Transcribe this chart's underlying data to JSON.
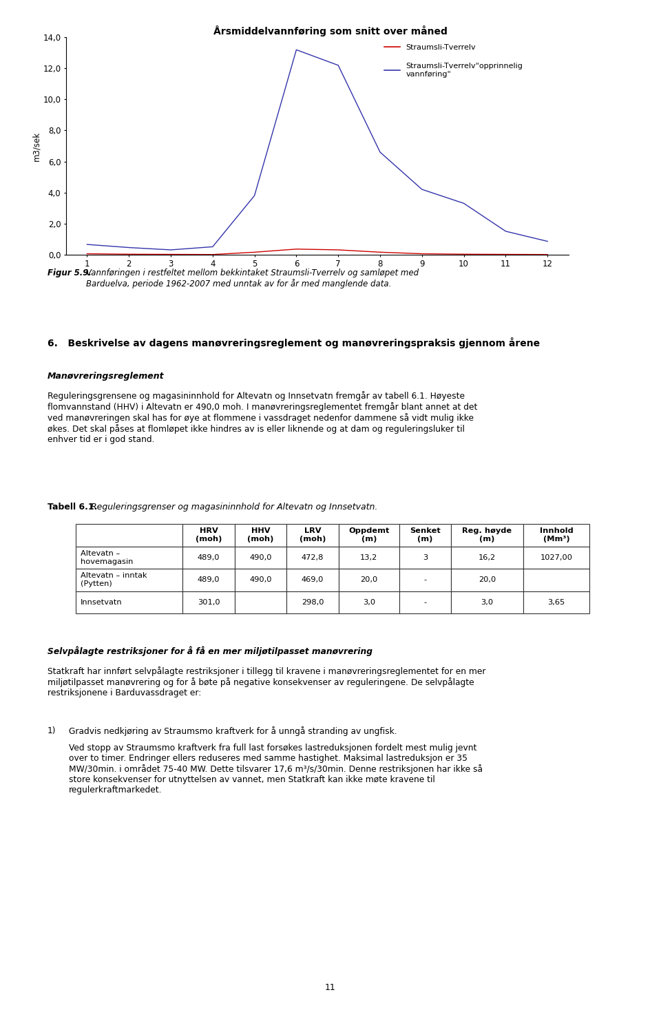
{
  "title": "Årsmiddelvannføring som snitt over måned",
  "ylabel": "m3/sek",
  "ylim": [
    0.0,
    14.0
  ],
  "yticks": [
    0.0,
    2.0,
    4.0,
    6.0,
    8.0,
    10.0,
    12.0,
    14.0
  ],
  "xticks": [
    1,
    2,
    3,
    4,
    5,
    6,
    7,
    8,
    9,
    10,
    11,
    12
  ],
  "line1_label": "Straumsli-Tverrelv",
  "line1_color": "#cc0000",
  "line1_x": [
    1,
    2,
    3,
    4,
    5,
    6,
    7,
    8,
    9,
    10,
    11,
    12
  ],
  "line1_y": [
    0.05,
    0.02,
    0.01,
    0.0,
    0.15,
    0.35,
    0.3,
    0.15,
    0.05,
    0.02,
    0.01,
    0.0
  ],
  "line2_label": "Straumsli-Tverrelv\"opprinnelig\nvannføring\"",
  "line2_color": "#3333aa",
  "line2_x": [
    1,
    2,
    3,
    4,
    5,
    6,
    7,
    8,
    9,
    10,
    11,
    12
  ],
  "line2_y": [
    0.65,
    0.45,
    0.3,
    0.5,
    3.8,
    13.2,
    12.2,
    6.6,
    4.2,
    3.3,
    1.5,
    0.85
  ],
  "figcaption_bold": "Figur 5.9.",
  "figcaption_text": "Vannføringen i restfeltet mellom bekkintaket Straumsli-Tverrelv og samløpet med\nBarduelva, periode 1962-2007 med unntak av for år med manglende data.",
  "section_number": "6.",
  "section_title": "Beskrivelse av dagens manøvreringsreglement og manøvreringspraksis gjennom årene",
  "subsection1": "Manøvreringsreglement",
  "paragraph1": "Reguleringsgrensene og magasininnhold for Altevatn og Innsetvatn fremgår av tabell 6.1. Høyeste\nflomvannstand (HHV) i Altevatn er 490,0 moh. I manøvreringsreglementet fremgår blant annet at det\nved manøvreringen skal has for øye at flommene i vassdraget nedenfor dammene så vidt mulig ikke\nøkes. Det skal påses at flomløpet ikke hindres av is eller liknende og at dam og reguleringsluker til\nenhver tid er i god stand.",
  "table_caption_bold": "Tabell 6.1.",
  "table_caption_italic": "Reguleringsgrenser og magasininnhold for Altevatn og Innsetvatn.",
  "table_headers": [
    "",
    "HRV\n(moh)",
    "HHV\n(moh)",
    "LRV\n(moh)",
    "Oppdemt\n(m)",
    "Senket\n(m)",
    "Reg. høyde\n(m)",
    "Innhold\n(Mm³)"
  ],
  "table_rows": [
    [
      "Altevatn –\nhovemagasin",
      "489,0",
      "490,0",
      "472,8",
      "13,2",
      "3",
      "16,2",
      "1027,00"
    ],
    [
      "Altevatn – inntak\n(Pytten)",
      "489,0",
      "490,0",
      "469,0",
      "20,0",
      "-",
      "20,0",
      ""
    ],
    [
      "Innsetvatn",
      "301,0",
      "",
      "298,0",
      "3,0",
      "-",
      "3,0",
      "3,65"
    ]
  ],
  "subsection2": "Selvpålagte restriksjoner for å få en mer miljøtilpasset manøvrering",
  "paragraph2": "Statkraft har innført selvpålagte restriksjoner i tillegg til kravene i manøvreringsreglementet for en mer\nmiljøtilpasset manøvrering og for å bøte på negative konsekvenser av reguleringene. De selvpålagte\nrestriksjonene i Barduvassdraget er:",
  "list1_num": "1)",
  "list1_title": "Gradvis nedkjøring av Straumsmo kraftverk for å unngå stranding av ungfisk.",
  "list1_body": "Ved stopp av Straumsmo kraftverk fra full last forsøkes lastreduksjonen fordelt mest mulig jevnt\nover to timer. Endringer ellers reduseres med samme hastighet. Maksimal lastreduksjon er 35\nMW/30min. i området 75-40 MW. Dette tilsvarer 17,6 m³/s/30min. Denne restriksjonen har ikke så\nstore konsekvenser for utnyttelsen av vannet, men Statkraft kan ikke møte kravene til\nregulerkraftmarkedet.",
  "page_number": "11",
  "bg": "#ffffff"
}
